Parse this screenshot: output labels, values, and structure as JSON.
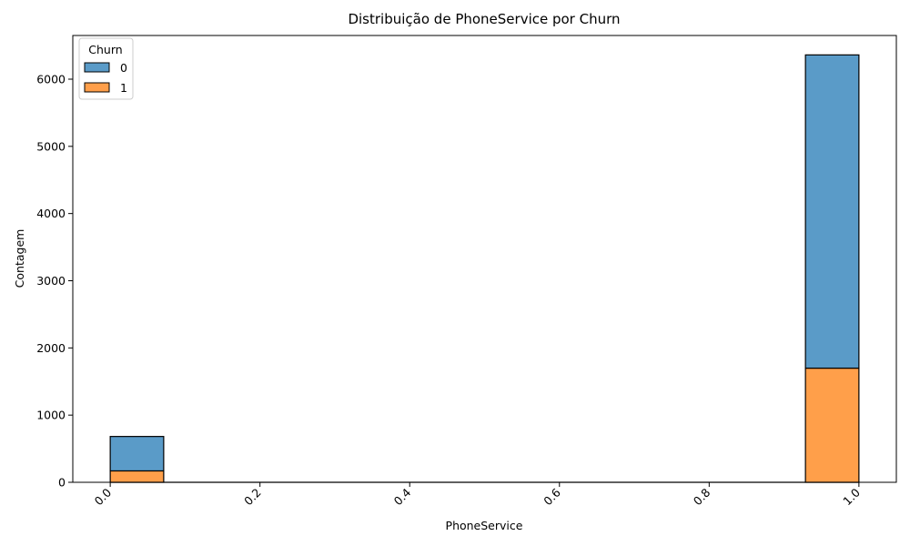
{
  "chart_data": {
    "type": "bar",
    "stacked": true,
    "title": "Distribuição de PhoneService por Churn",
    "xlabel": "PhoneService",
    "ylabel": "Contagem",
    "xlim": [
      -0.05,
      1.05
    ],
    "ylim": [
      0,
      6650
    ],
    "xticks": [
      0.0,
      0.2,
      0.4,
      0.6,
      0.8,
      1.0
    ],
    "xtick_labels": [
      "0.0",
      "0.2",
      "0.4",
      "0.6",
      "0.8",
      "1.0"
    ],
    "yticks": [
      0,
      1000,
      2000,
      3000,
      4000,
      5000,
      6000
    ],
    "ytick_labels": [
      "0",
      "1000",
      "2000",
      "3000",
      "4000",
      "5000",
      "6000"
    ],
    "bins": [
      {
        "x0": 0.0,
        "x1": 0.0714
      },
      {
        "x0": 0.9286,
        "x1": 1.0
      }
    ],
    "series": [
      {
        "name": "1",
        "color": "#ff9f4a",
        "values": [
          170,
          1699
        ]
      },
      {
        "name": "0",
        "color": "#5a9bc8",
        "values": [
          512,
          4662
        ]
      }
    ],
    "legend": {
      "title": "Churn",
      "placement": "top-left",
      "entries": [
        {
          "label": "0",
          "color": "#5a9bc8"
        },
        {
          "label": "1",
          "color": "#ff9f4a"
        }
      ]
    },
    "grid": false
  }
}
